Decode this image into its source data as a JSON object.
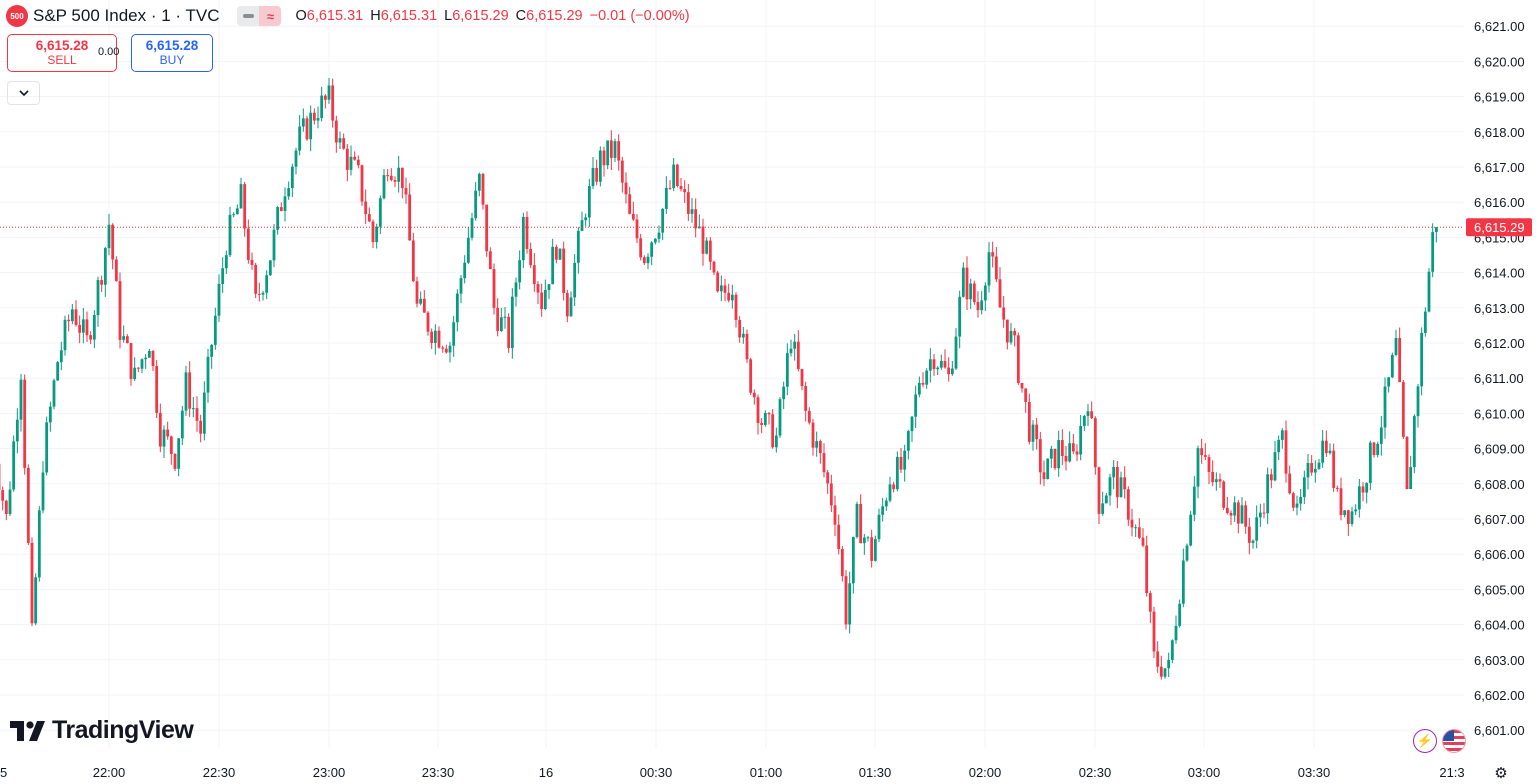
{
  "symbol": {
    "badge": "500",
    "title": "S&P 500 Index · 1 · TVC",
    "badge_color": "#f23645"
  },
  "toggles": {
    "left_icon": "line-toggle-icon",
    "right_icon": "wave-toggle-icon",
    "right_glyph": "≈"
  },
  "legend": {
    "o_label": "O",
    "o_value": "6,615.31",
    "h_label": "H",
    "h_value": "6,615.31",
    "l_label": "L",
    "l_value": "6,615.29",
    "c_label": "C",
    "c_value": "6,615.29",
    "change": "−0.01 (−0.00%)",
    "value_color": "#f23645"
  },
  "trade": {
    "sell_price": "6,615.28",
    "sell_label": "SELL",
    "spread": "0.00",
    "buy_price": "6,615.28",
    "buy_label": "BUY"
  },
  "branding": {
    "logo_text": "TradingView"
  },
  "colors": {
    "up": "#089981",
    "down": "#f23645",
    "grid": "#f0f3fa",
    "axis_text": "#131722"
  },
  "chart_data": {
    "type": "candlestick",
    "timeframe": "1 minute",
    "last_price": 6615.29,
    "last_price_label": "6,615.29",
    "ylim": [
      6600.75,
      6621.25
    ],
    "y_ticks": [
      "6,601.00",
      "6,602.00",
      "6,603.00",
      "6,604.00",
      "6,605.00",
      "6,606.00",
      "6,607.00",
      "6,608.00",
      "6,609.00",
      "6,610.00",
      "6,611.00",
      "6,612.00",
      "6,613.00",
      "6,614.00",
      "6,615.00",
      "6,616.00",
      "6,617.00",
      "6,618.00",
      "6,619.00",
      "6,620.00",
      "6,621.00"
    ],
    "x_ticks": [
      "5",
      "22:00",
      "22:30",
      "23:00",
      "23:30",
      "16",
      "00:30",
      "01:00",
      "01:30",
      "02:00",
      "02:30",
      "03:00",
      "03:30",
      "21:3"
    ],
    "grid": true,
    "path": [
      [
        "21:28",
        6609.4
      ],
      [
        "21:32",
        6607.0
      ],
      [
        "21:36",
        6611.3
      ],
      [
        "21:39",
        6603.6
      ],
      [
        "21:42",
        6608.7
      ],
      [
        "21:46",
        6611.5
      ],
      [
        "21:50",
        6613.0
      ],
      [
        "21:54",
        6612.0
      ],
      [
        "21:58",
        6614.1
      ],
      [
        "22:00",
        6615.4
      ],
      [
        "22:03",
        6612.4
      ],
      [
        "22:07",
        6611.0
      ],
      [
        "22:11",
        6612.1
      ],
      [
        "22:14",
        6609.5
      ],
      [
        "22:18",
        6608.8
      ],
      [
        "22:21",
        6610.8
      ],
      [
        "22:25",
        6609.5
      ],
      [
        "22:28",
        6612.0
      ],
      [
        "22:32",
        6614.9
      ],
      [
        "22:36",
        6616.1
      ],
      [
        "22:40",
        6613.1
      ],
      [
        "22:44",
        6614.5
      ],
      [
        "22:48",
        6616.5
      ],
      [
        "22:52",
        6617.8
      ],
      [
        "22:57",
        6618.7
      ],
      [
        "23:00",
        6618.9
      ],
      [
        "23:03",
        6617.6
      ],
      [
        "23:08",
        6616.7
      ],
      [
        "23:12",
        6614.9
      ],
      [
        "23:16",
        6617.2
      ],
      [
        "23:20",
        6616.7
      ],
      [
        "23:24",
        6613.0
      ],
      [
        "23:28",
        6612.4
      ],
      [
        "23:33",
        6612.0
      ],
      [
        "23:37",
        6614.5
      ],
      [
        "23:41",
        6616.6
      ],
      [
        "23:45",
        6613.0
      ],
      [
        "23:49",
        6612.1
      ],
      [
        "23:53",
        6615.5
      ],
      [
        "23:58",
        6613.2
      ],
      [
        "00:02",
        6614.8
      ],
      [
        "00:05",
        6613.1
      ],
      [
        "00:10",
        6615.9
      ],
      [
        "00:14",
        6617.2
      ],
      [
        "00:18",
        6617.5
      ],
      [
        "00:22",
        6615.5
      ],
      [
        "00:26",
        6614.5
      ],
      [
        "00:30",
        6615.5
      ],
      [
        "00:34",
        6616.7
      ],
      [
        "00:38",
        6615.8
      ],
      [
        "00:42",
        6614.9
      ],
      [
        "00:46",
        6613.2
      ],
      [
        "00:50",
        6613.7
      ],
      [
        "00:54",
        6611.3
      ],
      [
        "00:58",
        6609.8
      ],
      [
        "01:02",
        6609.3
      ],
      [
        "01:06",
        6612.2
      ],
      [
        "01:10",
        6610.0
      ],
      [
        "01:14",
        6608.7
      ],
      [
        "01:18",
        6607.2
      ],
      [
        "01:21",
        6604.3
      ],
      [
        "01:24",
        6607.0
      ],
      [
        "01:28",
        6606.0
      ],
      [
        "01:33",
        6608.2
      ],
      [
        "01:37",
        6608.5
      ],
      [
        "01:41",
        6611.0
      ],
      [
        "01:45",
        6611.7
      ],
      [
        "01:49",
        6611.0
      ],
      [
        "01:53",
        6613.8
      ],
      [
        "01:57",
        6613.0
      ],
      [
        "02:00",
        6614.6
      ],
      [
        "02:03",
        6613.0
      ],
      [
        "02:07",
        6611.8
      ],
      [
        "02:11",
        6609.6
      ],
      [
        "02:15",
        6608.2
      ],
      [
        "02:19",
        6609.0
      ],
      [
        "02:23",
        6608.7
      ],
      [
        "02:27",
        6610.5
      ],
      [
        "02:30",
        6607.5
      ],
      [
        "02:34",
        6608.2
      ],
      [
        "02:38",
        6607.3
      ],
      [
        "02:42",
        6606.0
      ],
      [
        "02:45",
        6603.0
      ],
      [
        "02:49",
        6602.7
      ],
      [
        "02:53",
        6605.8
      ],
      [
        "02:57",
        6609.0
      ],
      [
        "03:00",
        6608.2
      ],
      [
        "03:04",
        6607.7
      ],
      [
        "03:08",
        6607.2
      ],
      [
        "03:12",
        6606.4
      ],
      [
        "03:16",
        6608.0
      ],
      [
        "03:20",
        6609.3
      ],
      [
        "03:24",
        6607.0
      ],
      [
        "03:28",
        6608.6
      ],
      [
        "03:32",
        6609.3
      ],
      [
        "03:35",
        6607.5
      ],
      [
        "03:39",
        6607.2
      ],
      [
        "03:43",
        6608.4
      ],
      [
        "03:47",
        6609.8
      ],
      [
        "03:51",
        6611.9
      ],
      [
        "03:54",
        6607.6
      ],
      [
        "03:58",
        6612.1
      ],
      [
        "04:01",
        6615.0
      ],
      [
        "04:02",
        6615.29
      ]
    ]
  }
}
